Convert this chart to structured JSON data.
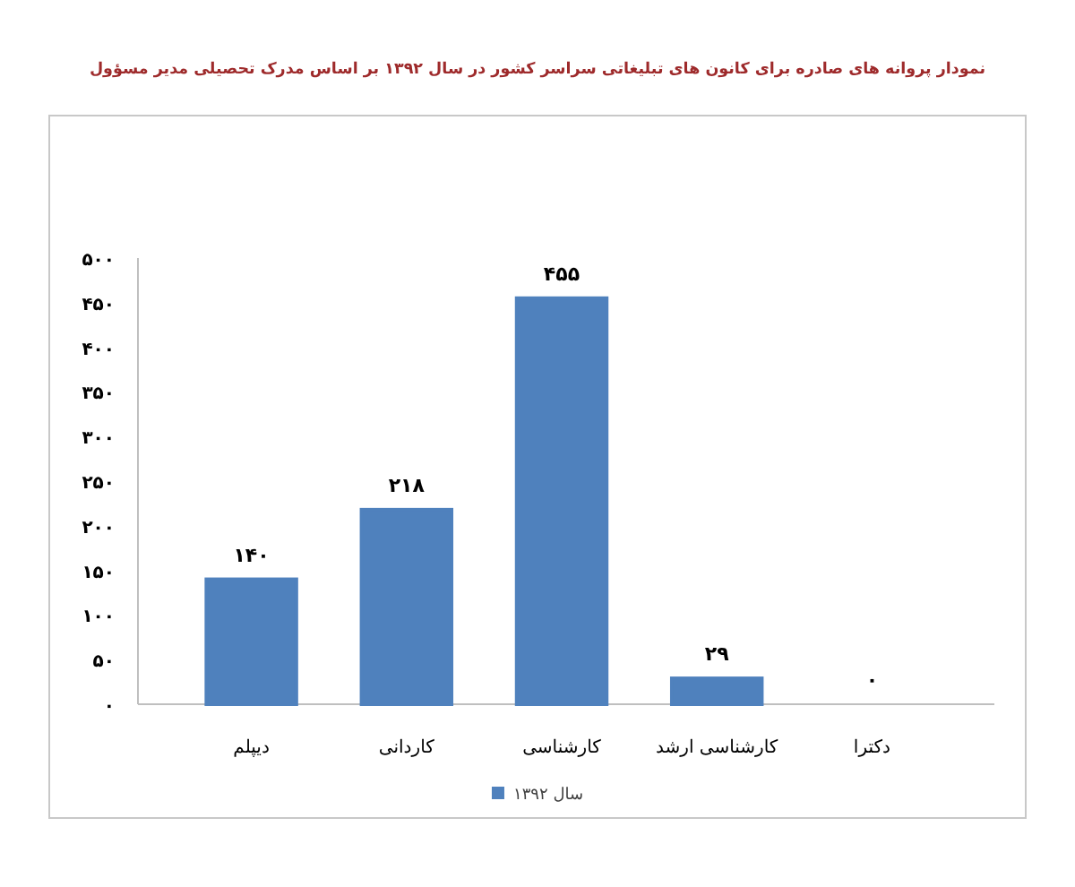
{
  "chart_data": {
    "type": "bar",
    "title": "نمودار پروانه های صادره برای کانون های تبلیغاتی سراسر کشور در سال ۱۳۹۲ بر اساس مدرک تحصیلی مدیر مسؤول",
    "categories": [
      "دیپلم",
      "کاردانی",
      "کارشناسی",
      "کارشناسی ارشد",
      "دکترا"
    ],
    "series": [
      {
        "name": "سال ۱۳۹۲",
        "color": "#4f81bd",
        "values": [
          140,
          218,
          455,
          29,
          0
        ],
        "value_labels": [
          "۱۴۰",
          "۲۱۸",
          "۴۵۵",
          "۲۹",
          "۰"
        ]
      }
    ],
    "ylim": [
      0,
      500
    ],
    "yticks": [
      {
        "value": 0,
        "label": "۰"
      },
      {
        "value": 50,
        "label": "۵۰"
      },
      {
        "value": 100,
        "label": "۱۰۰"
      },
      {
        "value": 150,
        "label": "۱۵۰"
      },
      {
        "value": 200,
        "label": "۲۰۰"
      },
      {
        "value": 250,
        "label": "۲۵۰"
      },
      {
        "value": 300,
        "label": "۳۰۰"
      },
      {
        "value": 350,
        "label": "۳۵۰"
      },
      {
        "value": 400,
        "label": "۴۰۰"
      },
      {
        "value": 450,
        "label": "۴۵۰"
      },
      {
        "value": 500,
        "label": "۵۰۰"
      }
    ],
    "legend": "bottom"
  }
}
